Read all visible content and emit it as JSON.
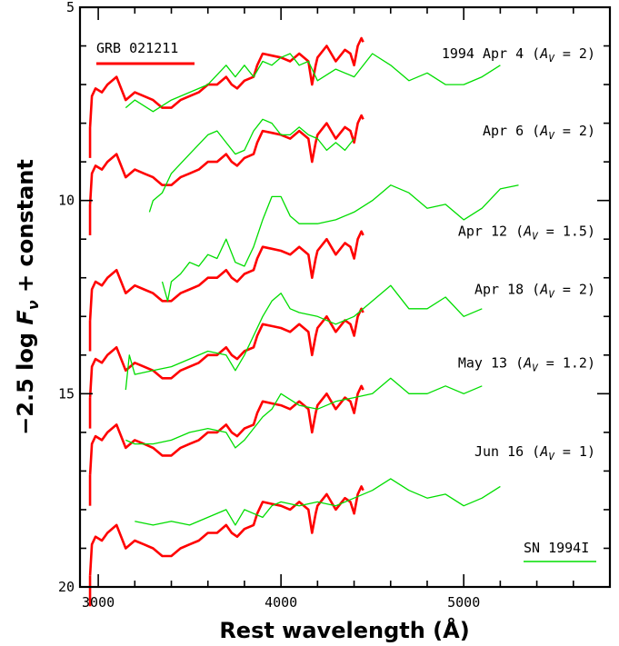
{
  "chart_data": {
    "type": "line",
    "title": "",
    "xlabel": "Rest wavelength (Å)",
    "ylabel_parts": [
      "−2.5 log ",
      "F",
      "ν",
      " + constant"
    ],
    "xlim": [
      2900,
      5800
    ],
    "ylim": [
      20,
      5
    ],
    "y_inverted": true,
    "x_ticks": [
      3000,
      4000,
      5000
    ],
    "y_ticks": [
      5,
      10,
      15,
      20
    ],
    "grid": false,
    "legend": [
      {
        "name": "GRB 021211",
        "color": "#ff0000",
        "placement": "top-left"
      },
      {
        "name": "SN 1994I",
        "color": "#00dd00",
        "placement": "bottom-right"
      }
    ],
    "epoch_labels": [
      {
        "date": "1994 Apr 4",
        "av": "2",
        "y": 6.2
      },
      {
        "date": "Apr 6",
        "av": "2",
        "y": 8.2
      },
      {
        "date": "Apr 12",
        "av": "1.5",
        "y": 10.8
      },
      {
        "date": "Apr 18",
        "av": "2",
        "y": 12.3
      },
      {
        "date": "May 13",
        "av": "1.2",
        "y": 14.2
      },
      {
        "date": "Jun 16",
        "av": "1",
        "y": 16.5
      }
    ],
    "series": [
      {
        "name": "GRB 021211",
        "color": "#ff0000",
        "offset": 0,
        "x": [
          2955,
          2965,
          2985,
          3020,
          3050,
          3100,
          3150,
          3200,
          3250,
          3300,
          3350,
          3400,
          3450,
          3500,
          3550,
          3600,
          3650,
          3700,
          3730,
          3760,
          3800,
          3850,
          3870,
          3900,
          3950,
          4000,
          4050,
          4100,
          4150,
          4170,
          4190,
          4200,
          4250,
          4300,
          4350,
          4380,
          4400,
          4420,
          4440,
          4450
        ],
        "y": [
          8.1,
          7.3,
          7.1,
          7.2,
          7.0,
          6.8,
          7.4,
          7.2,
          7.3,
          7.4,
          7.6,
          7.6,
          7.4,
          7.3,
          7.2,
          7.0,
          7.0,
          6.8,
          7.0,
          7.1,
          6.9,
          6.8,
          6.5,
          6.2,
          6.25,
          6.3,
          6.4,
          6.2,
          6.4,
          7.0,
          6.5,
          6.3,
          6.0,
          6.4,
          6.1,
          6.2,
          6.5,
          6.0,
          5.8,
          5.9
        ]
      },
      {
        "name": "SN 1994I",
        "color": "#00dd00",
        "offset": 0,
        "x": [
          3150,
          3200,
          3300,
          3400,
          3500,
          3600,
          3700,
          3750,
          3800,
          3850,
          3900,
          3950,
          4000,
          4050,
          4100,
          4150,
          4200,
          4300,
          4400,
          4500,
          4600,
          4700,
          4800,
          4900,
          5000,
          5100,
          5200
        ],
        "y": [
          7.6,
          7.4,
          7.7,
          7.4,
          7.2,
          7.0,
          6.5,
          6.8,
          6.5,
          6.8,
          6.4,
          6.5,
          6.3,
          6.2,
          6.5,
          6.4,
          6.9,
          6.6,
          6.8,
          6.2,
          6.5,
          6.9,
          6.7,
          7.0,
          7.0,
          6.8,
          6.5
        ]
      },
      {
        "name": "GRB 021211",
        "color": "#ff0000",
        "offset": 2.0,
        "x": [
          2955,
          2965,
          2985,
          3020,
          3050,
          3100,
          3150,
          3200,
          3250,
          3300,
          3350,
          3400,
          3450,
          3500,
          3550,
          3600,
          3650,
          3700,
          3730,
          3760,
          3800,
          3850,
          3870,
          3900,
          3950,
          4000,
          4050,
          4100,
          4150,
          4170,
          4190,
          4200,
          4250,
          4300,
          4350,
          4380,
          4400,
          4420,
          4440,
          4450
        ],
        "y": [
          8.1,
          7.3,
          7.1,
          7.2,
          7.0,
          6.8,
          7.4,
          7.2,
          7.3,
          7.4,
          7.6,
          7.6,
          7.4,
          7.3,
          7.2,
          7.0,
          7.0,
          6.8,
          7.0,
          7.1,
          6.9,
          6.8,
          6.5,
          6.2,
          6.25,
          6.3,
          6.4,
          6.2,
          6.4,
          7.0,
          6.5,
          6.3,
          6.0,
          6.4,
          6.1,
          6.2,
          6.5,
          6.0,
          5.8,
          5.9
        ]
      },
      {
        "name": "SN 1994I",
        "color": "#00dd00",
        "offset": 0,
        "x": [
          3280,
          3300,
          3350,
          3400,
          3500,
          3600,
          3650,
          3700,
          3750,
          3800,
          3850,
          3900,
          3950,
          4000,
          4050,
          4100,
          4150,
          4200,
          4250,
          4300,
          4350,
          4400
        ],
        "y": [
          10.3,
          10.0,
          9.8,
          9.3,
          8.8,
          8.3,
          8.2,
          8.5,
          8.8,
          8.7,
          8.2,
          7.9,
          8.0,
          8.3,
          8.3,
          8.1,
          8.3,
          8.4,
          8.7,
          8.5,
          8.7,
          8.4
        ]
      },
      {
        "name": "GRB 021211",
        "color": "#ff0000",
        "offset": 5.0,
        "x": [
          2955,
          2965,
          2985,
          3020,
          3050,
          3100,
          3150,
          3200,
          3250,
          3300,
          3350,
          3400,
          3450,
          3500,
          3550,
          3600,
          3650,
          3700,
          3730,
          3760,
          3800,
          3850,
          3870,
          3900,
          3950,
          4000,
          4050,
          4100,
          4150,
          4170,
          4190,
          4200,
          4250,
          4300,
          4350,
          4380,
          4400,
          4420,
          4440,
          4450
        ],
        "y": [
          8.1,
          7.3,
          7.1,
          7.2,
          7.0,
          6.8,
          7.4,
          7.2,
          7.3,
          7.4,
          7.6,
          7.6,
          7.4,
          7.3,
          7.2,
          7.0,
          7.0,
          6.8,
          7.0,
          7.1,
          6.9,
          6.8,
          6.5,
          6.2,
          6.25,
          6.3,
          6.4,
          6.2,
          6.4,
          7.0,
          6.5,
          6.3,
          6.0,
          6.4,
          6.1,
          6.2,
          6.5,
          6.0,
          5.8,
          5.9
        ]
      },
      {
        "name": "SN 1994I",
        "color": "#00dd00",
        "offset": 0,
        "x": [
          3350,
          3380,
          3400,
          3450,
          3500,
          3550,
          3600,
          3650,
          3700,
          3750,
          3800,
          3850,
          3900,
          3950,
          4000,
          4050,
          4100,
          4200,
          4300,
          4400,
          4500,
          4600,
          4700,
          4800,
          4900,
          5000,
          5100,
          5200,
          5300
        ],
        "y": [
          12.1,
          12.6,
          12.1,
          11.9,
          11.6,
          11.7,
          11.4,
          11.5,
          11.0,
          11.6,
          11.7,
          11.2,
          10.5,
          9.9,
          9.9,
          10.4,
          10.6,
          10.6,
          10.5,
          10.3,
          10.0,
          9.6,
          9.8,
          10.2,
          10.1,
          10.5,
          10.2,
          9.7,
          9.6
        ]
      },
      {
        "name": "GRB 021211",
        "color": "#ff0000",
        "offset": 7.0,
        "x": [
          2955,
          2965,
          2985,
          3020,
          3050,
          3100,
          3150,
          3200,
          3250,
          3300,
          3350,
          3400,
          3450,
          3500,
          3550,
          3600,
          3650,
          3700,
          3730,
          3760,
          3800,
          3850,
          3870,
          3900,
          3950,
          4000,
          4050,
          4100,
          4150,
          4170,
          4190,
          4200,
          4250,
          4300,
          4350,
          4380,
          4400,
          4420,
          4440,
          4450
        ],
        "y": [
          8.1,
          7.3,
          7.1,
          7.2,
          7.0,
          6.8,
          7.4,
          7.2,
          7.3,
          7.4,
          7.6,
          7.6,
          7.4,
          7.3,
          7.2,
          7.0,
          7.0,
          6.8,
          7.0,
          7.1,
          6.9,
          6.8,
          6.5,
          6.2,
          6.25,
          6.3,
          6.4,
          6.2,
          6.4,
          7.0,
          6.5,
          6.3,
          6.0,
          6.4,
          6.1,
          6.2,
          6.5,
          6.0,
          5.8,
          5.9
        ]
      },
      {
        "name": "SN 1994I",
        "color": "#00dd00",
        "offset": 0,
        "x": [
          3150,
          3170,
          3200,
          3300,
          3400,
          3500,
          3600,
          3700,
          3750,
          3800,
          3850,
          3900,
          3950,
          4000,
          4050,
          4100,
          4200,
          4300,
          4400,
          4500,
          4600,
          4700,
          4800,
          4900,
          5000,
          5100
        ],
        "y": [
          14.9,
          14.0,
          14.5,
          14.4,
          14.3,
          14.1,
          13.9,
          14.0,
          14.4,
          14.0,
          13.5,
          13.0,
          12.6,
          12.4,
          12.8,
          12.9,
          13.0,
          13.2,
          13.0,
          12.6,
          12.2,
          12.8,
          12.8,
          12.5,
          13.0,
          12.8
        ]
      },
      {
        "name": "GRB 021211",
        "color": "#ff0000",
        "offset": 9.0,
        "x": [
          2955,
          2965,
          2985,
          3020,
          3050,
          3100,
          3150,
          3200,
          3250,
          3300,
          3350,
          3400,
          3450,
          3500,
          3550,
          3600,
          3650,
          3700,
          3730,
          3760,
          3800,
          3850,
          3870,
          3900,
          3950,
          4000,
          4050,
          4100,
          4150,
          4170,
          4190,
          4200,
          4250,
          4300,
          4350,
          4380,
          4400,
          4420,
          4440,
          4450
        ],
        "y": [
          8.1,
          7.3,
          7.1,
          7.2,
          7.0,
          6.8,
          7.4,
          7.2,
          7.3,
          7.4,
          7.6,
          7.6,
          7.4,
          7.3,
          7.2,
          7.0,
          7.0,
          6.8,
          7.0,
          7.1,
          6.9,
          6.8,
          6.5,
          6.2,
          6.25,
          6.3,
          6.4,
          6.2,
          6.4,
          7.0,
          6.5,
          6.3,
          6.0,
          6.4,
          6.1,
          6.2,
          6.5,
          6.0,
          5.8,
          5.9
        ]
      },
      {
        "name": "SN 1994I",
        "color": "#00dd00",
        "offset": 0,
        "x": [
          3150,
          3200,
          3300,
          3400,
          3500,
          3600,
          3700,
          3750,
          3800,
          3850,
          3900,
          3950,
          4000,
          4100,
          4200,
          4300,
          4400,
          4500,
          4600,
          4700,
          4800,
          4900,
          5000,
          5100
        ],
        "y": [
          16.2,
          16.3,
          16.3,
          16.2,
          16.0,
          15.9,
          16.0,
          16.4,
          16.2,
          15.9,
          15.6,
          15.4,
          15.0,
          15.3,
          15.4,
          15.2,
          15.1,
          15.0,
          14.6,
          15.0,
          15.0,
          14.8,
          15.0,
          14.8
        ]
      },
      {
        "name": "GRB 021211",
        "color": "#ff0000",
        "offset": 11.6,
        "x": [
          2955,
          2965,
          2985,
          3020,
          3050,
          3100,
          3150,
          3200,
          3250,
          3300,
          3350,
          3400,
          3450,
          3500,
          3550,
          3600,
          3650,
          3700,
          3730,
          3760,
          3800,
          3850,
          3870,
          3900,
          3950,
          4000,
          4050,
          4100,
          4150,
          4170,
          4190,
          4200,
          4250,
          4300,
          4350,
          4380,
          4400,
          4420,
          4440,
          4450
        ],
        "y": [
          8.1,
          7.3,
          7.1,
          7.2,
          7.0,
          6.8,
          7.4,
          7.2,
          7.3,
          7.4,
          7.6,
          7.6,
          7.4,
          7.3,
          7.2,
          7.0,
          7.0,
          6.8,
          7.0,
          7.1,
          6.9,
          6.8,
          6.5,
          6.2,
          6.25,
          6.3,
          6.4,
          6.2,
          6.4,
          7.0,
          6.5,
          6.3,
          6.0,
          6.4,
          6.1,
          6.2,
          6.5,
          6.0,
          5.8,
          5.9
        ]
      },
      {
        "name": "SN 1994I",
        "color": "#00dd00",
        "offset": 0,
        "x": [
          3200,
          3300,
          3400,
          3500,
          3600,
          3700,
          3750,
          3800,
          3850,
          3900,
          3950,
          4000,
          4100,
          4200,
          4300,
          4400,
          4500,
          4600,
          4700,
          4800,
          4900,
          5000,
          5100,
          5200
        ],
        "y": [
          18.3,
          18.4,
          18.3,
          18.4,
          18.2,
          18.0,
          18.4,
          18.0,
          18.1,
          18.2,
          17.9,
          17.8,
          17.9,
          17.8,
          17.9,
          17.7,
          17.5,
          17.2,
          17.5,
          17.7,
          17.6,
          17.9,
          17.7,
          17.4
        ]
      }
    ]
  }
}
